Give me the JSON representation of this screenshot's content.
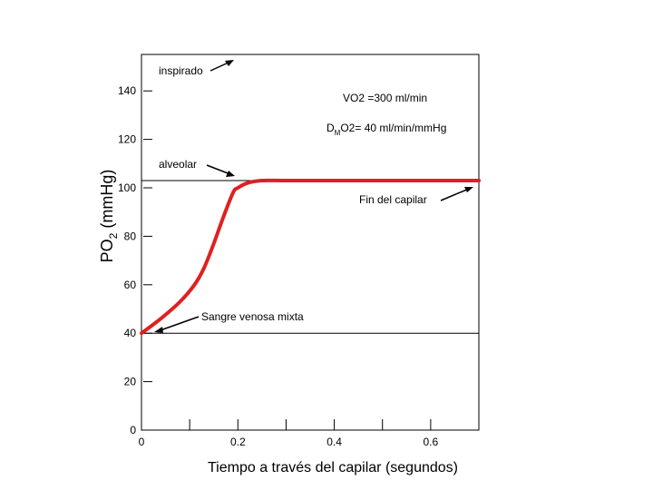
{
  "chart_data": {
    "type": "line",
    "xlabel": "Tiempo a través del capilar (segundos)",
    "ylabel_main": "PO",
    "ylabel_sub": "2",
    "ylabel_unit": " (mmHg)",
    "xlim": [
      0,
      0.7
    ],
    "ylim": [
      0,
      150
    ],
    "yticks": [
      0,
      20,
      40,
      60,
      80,
      100,
      120,
      140
    ],
    "ytick_labels": [
      "0",
      "20",
      "40",
      "60",
      "80",
      "100",
      "120",
      "140"
    ],
    "xticks_labeled": [
      0,
      0.2,
      0.4,
      0.6
    ],
    "xtick_labels": [
      "0",
      "0.2",
      "0.4",
      "0.6"
    ],
    "xticks_minor": [
      0.1,
      0.3,
      0.5
    ],
    "reference_lines": [
      {
        "y": 103,
        "meaning": "alveolar"
      },
      {
        "y": 40,
        "meaning": "venous"
      }
    ],
    "series": [
      {
        "color": "#e02020",
        "x": [
          0,
          0.04,
          0.08,
          0.11,
          0.13,
          0.15,
          0.17,
          0.19,
          0.2,
          0.22,
          0.25,
          0.3,
          0.4,
          0.5,
          0.6,
          0.7
        ],
        "y": [
          40,
          46,
          53,
          60,
          67,
          77,
          88,
          98,
          100,
          102,
          103,
          103,
          103,
          103,
          103,
          103
        ]
      }
    ],
    "annotations": {
      "inspirado": "inspirado",
      "vo2": "VO2 =300 ml/min",
      "dmo2_prefix": "D",
      "dmo2_sub": "M",
      "dmo2_rest": "O2= 40 ml/min/mmHg",
      "alveolar": "alveolar",
      "fin_capilar": "Fin del capilar",
      "sangre_venosa": "Sangre venosa mixta"
    }
  }
}
